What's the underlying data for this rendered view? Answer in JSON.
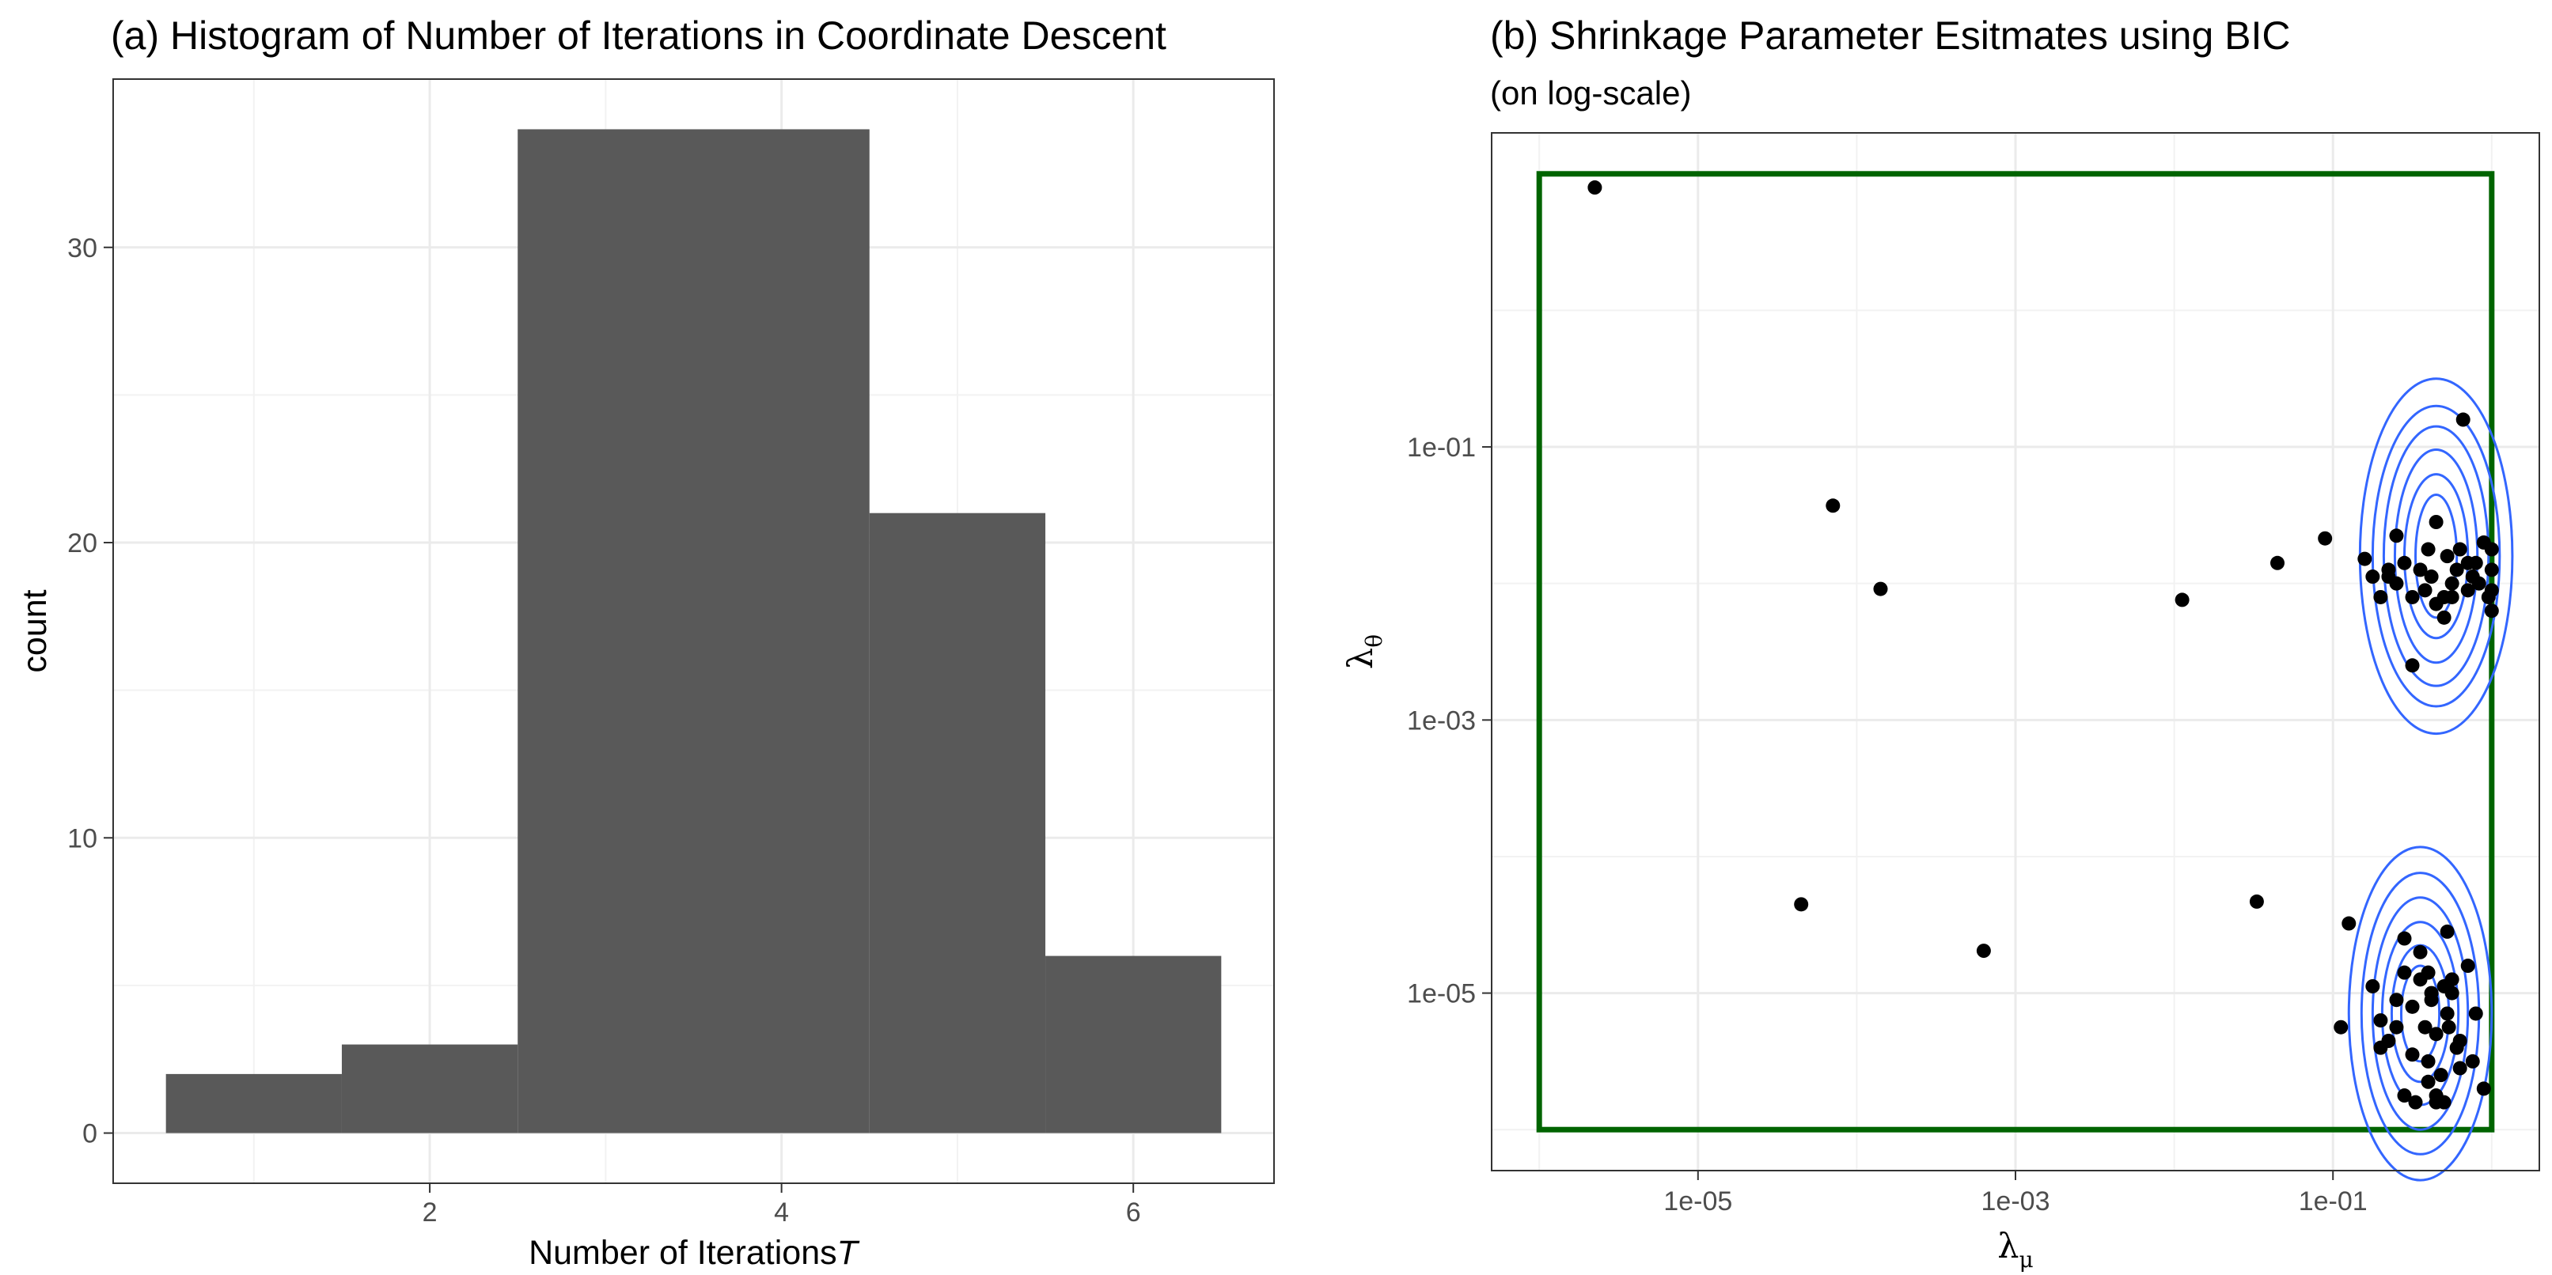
{
  "chart_data": [
    {
      "type": "bar",
      "title": "(a) Histogram of Number of Iterations in Coordinate Descent",
      "xlabel": "Number of Iterations",
      "xlabel_symbol": "T",
      "ylabel": "count",
      "categories": [
        1,
        2,
        3,
        4,
        5,
        6
      ],
      "values": [
        2,
        3,
        34,
        34,
        21,
        6
      ],
      "bin_width": 1,
      "xlim": [
        0.2,
        6.8
      ],
      "ylim": [
        -1.7,
        35.7
      ],
      "x_ticks": [
        2,
        4,
        6
      ],
      "x_tick_labels": [
        "2",
        "4",
        "6"
      ],
      "y_ticks": [
        0,
        10,
        20,
        30
      ],
      "y_tick_labels": [
        "0",
        "10",
        "20",
        "30"
      ],
      "bar_color": "#595959",
      "grid": true
    },
    {
      "type": "scatter",
      "title": "(b) Shrinkage Parameter Esitmates using BIC",
      "subtitle": "(on log-scale)",
      "xlabel_main": "λ",
      "xlabel_sub": "μ",
      "ylabel_main": "λ",
      "ylabel_sub": "θ",
      "log_scale": true,
      "xlim_log10": [
        -6.3,
        0.3
      ],
      "ylim_log10": [
        -6.3,
        1.3
      ],
      "x_ticks_log10": [
        -5,
        -3,
        -1
      ],
      "x_tick_labels": [
        "1e-05",
        "1e-03",
        "1e-01"
      ],
      "y_ticks_log10": [
        -5,
        -3,
        -1
      ],
      "y_tick_labels": [
        "1e-05",
        "1e-03",
        "1e-01"
      ],
      "grid": true,
      "bounding_box_log10": {
        "x": [
          -6,
          0
        ],
        "y": [
          -6,
          1
        ]
      },
      "box_color": "#006400",
      "contour_color": "#3366ff",
      "point_color": "#000000",
      "density_modes_log10": [
        {
          "x": -0.35,
          "y": -1.8,
          "contours": [
            [
              0.13,
              0.45
            ],
            [
              0.2,
              0.6
            ],
            [
              0.26,
              0.78
            ],
            [
              0.33,
              0.95
            ],
            [
              0.4,
              1.1
            ],
            [
              0.48,
              1.3
            ]
          ]
        },
        {
          "x": -0.45,
          "y": -5.15,
          "contours": [
            [
              0.12,
              0.35
            ],
            [
              0.18,
              0.5
            ],
            [
              0.24,
              0.67
            ],
            [
              0.3,
              0.85
            ],
            [
              0.37,
              1.03
            ],
            [
              0.45,
              1.22
            ]
          ]
        }
      ],
      "points_log10": [
        [
          -5.65,
          0.9
        ],
        [
          -4.15,
          -1.43
        ],
        [
          -3.85,
          -2.04
        ],
        [
          -4.35,
          -4.35
        ],
        [
          -3.2,
          -4.69
        ],
        [
          -1.95,
          -2.12
        ],
        [
          -1.48,
          -4.33
        ],
        [
          -1.35,
          -1.85
        ],
        [
          -1.05,
          -1.67
        ],
        [
          -0.9,
          -4.49
        ],
        [
          -0.95,
          -5.25
        ],
        [
          -0.8,
          -1.82
        ],
        [
          -0.75,
          -1.95
        ],
        [
          -0.7,
          -2.1
        ],
        [
          -0.65,
          -1.95
        ],
        [
          -0.6,
          -2.0
        ],
        [
          -0.55,
          -1.85
        ],
        [
          -0.5,
          -2.6
        ],
        [
          -0.45,
          -1.9
        ],
        [
          -0.42,
          -2.05
        ],
        [
          -0.38,
          -1.95
        ],
        [
          -0.35,
          -1.55
        ],
        [
          -0.3,
          -2.1
        ],
        [
          -0.28,
          -1.8
        ],
        [
          -0.25,
          -2.0
        ],
        [
          -0.22,
          -1.9
        ],
        [
          -0.2,
          -1.75
        ],
        [
          -0.15,
          -2.05
        ],
        [
          -0.12,
          -1.95
        ],
        [
          -0.1,
          -1.85
        ],
        [
          -0.05,
          -1.7
        ],
        [
          -0.02,
          -2.1
        ],
        [
          0,
          -1.75
        ],
        [
          0,
          -1.9
        ],
        [
          0,
          -2.2
        ],
        [
          -0.3,
          -2.25
        ],
        [
          -0.25,
          -2.1
        ],
        [
          -0.4,
          -1.75
        ],
        [
          -0.18,
          -0.8
        ],
        [
          -0.6,
          -1.65
        ],
        [
          -0.65,
          -1.9
        ],
        [
          -0.5,
          -2.1
        ],
        [
          -0.15,
          -1.85
        ],
        [
          -0.08,
          -2.0
        ],
        [
          0,
          -2.05
        ],
        [
          -0.35,
          -2.15
        ],
        [
          -0.55,
          -4.6
        ],
        [
          -0.75,
          -4.95
        ],
        [
          -0.7,
          -5.2
        ],
        [
          -0.65,
          -5.35
        ],
        [
          -0.6,
          -5.05
        ],
        [
          -0.55,
          -4.85
        ],
        [
          -0.5,
          -5.1
        ],
        [
          -0.5,
          -5.45
        ],
        [
          -0.45,
          -4.9
        ],
        [
          -0.42,
          -5.25
        ],
        [
          -0.4,
          -4.85
        ],
        [
          -0.38,
          -5.0
        ],
        [
          -0.35,
          -5.3
        ],
        [
          -0.32,
          -5.6
        ],
        [
          -0.3,
          -4.95
        ],
        [
          -0.28,
          -5.15
        ],
        [
          -0.25,
          -5.0
        ],
        [
          -0.22,
          -5.4
        ],
        [
          -0.2,
          -5.55
        ],
        [
          -0.15,
          -4.8
        ],
        [
          -0.12,
          -5.5
        ],
        [
          -0.05,
          -5.7
        ],
        [
          -0.45,
          -4.7
        ],
        [
          -0.48,
          -5.8
        ],
        [
          -0.4,
          -5.65
        ],
        [
          -0.3,
          -5.8
        ],
        [
          -0.25,
          -4.9
        ],
        [
          -0.6,
          -5.25
        ],
        [
          -0.55,
          -5.75
        ],
        [
          -0.35,
          -5.75
        ],
        [
          -0.4,
          -5.5
        ],
        [
          -0.7,
          -5.4
        ],
        [
          -0.2,
          -5.35
        ],
        [
          -0.1,
          -5.15
        ],
        [
          -0.35,
          -5.8
        ],
        [
          -0.38,
          -5.05
        ],
        [
          -0.27,
          -5.25
        ],
        [
          -0.28,
          -4.55
        ]
      ]
    }
  ]
}
